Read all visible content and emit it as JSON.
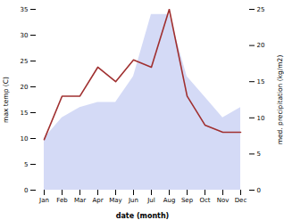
{
  "chart_data": {
    "type": "combo",
    "categories": [
      "Jan",
      "Feb",
      "Mar",
      "Apr",
      "May",
      "Jun",
      "Jul",
      "Aug",
      "Sep",
      "Oct",
      "Nov",
      "Dec"
    ],
    "series": [
      {
        "type": "area",
        "color": "#b0bcee",
        "values": [
          10,
          14,
          16,
          17,
          17,
          22,
          34,
          34,
          22,
          18,
          14,
          16
        ]
      },
      {
        "type": "line",
        "color": "#a03030",
        "axis": "y2",
        "values": [
          7,
          13,
          13,
          17,
          15,
          18,
          17,
          25,
          13,
          9,
          8,
          8
        ]
      }
    ],
    "xlabel": "date (month)",
    "ylabel": "max temp (C)",
    "y2label": "med. precipitation (kg/m2)",
    "ylim": [
      0,
      35
    ],
    "yticks": [
      0,
      5,
      10,
      15,
      20,
      25,
      30,
      35
    ],
    "y2lim": [
      0,
      25
    ],
    "y2ticks": [
      0,
      5,
      10,
      15,
      20,
      25
    ],
    "grid": false
  }
}
